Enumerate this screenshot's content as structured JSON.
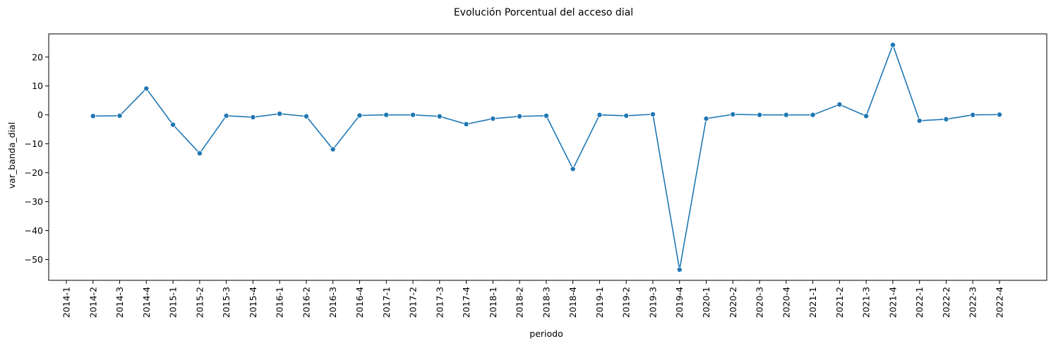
{
  "chart_data": {
    "type": "line",
    "title": "Evolución Porcentual del acceso dial",
    "xlabel": "periodo",
    "ylabel": "var_banda_dial",
    "categories": [
      "2014-1",
      "2014-2",
      "2014-3",
      "2014-4",
      "2015-1",
      "2015-2",
      "2015-3",
      "2015-4",
      "2016-1",
      "2016-2",
      "2016-3",
      "2016-4",
      "2017-1",
      "2017-2",
      "2017-3",
      "2017-4",
      "2018-1",
      "2018-2",
      "2018-3",
      "2018-4",
      "2019-1",
      "2019-2",
      "2019-3",
      "2019-4",
      "2020-1",
      "2020-2",
      "2020-3",
      "2020-4",
      "2021-1",
      "2021-2",
      "2021-3",
      "2021-4",
      "2022-1",
      "2022-2",
      "2022-3",
      "2022-4"
    ],
    "yticks": [
      20,
      10,
      0,
      -10,
      -20,
      -30,
      -40,
      -50
    ],
    "ytick_labels": [
      "20",
      "10",
      "0",
      "−10",
      "−20",
      "−30",
      "−40",
      "−50"
    ],
    "ylim": [
      -57.2,
      28.0
    ],
    "series": [
      {
        "values": [
          null,
          -0.4,
          -0.3,
          9.1,
          -3.4,
          -13.3,
          -0.3,
          -0.8,
          0.4,
          -0.5,
          -11.9,
          -0.2,
          0.0,
          0.0,
          -0.5,
          -3.2,
          -1.3,
          -0.5,
          -0.3,
          -18.7,
          0.0,
          -0.3,
          0.2,
          -53.5,
          -1.3,
          0.2,
          0.0,
          0.0,
          0.0,
          3.6,
          -0.4,
          24.2,
          -2.0,
          -1.5,
          0.0,
          0.1
        ],
        "color": "#1f77b4"
      }
    ],
    "grid": false,
    "marker": "circle"
  }
}
